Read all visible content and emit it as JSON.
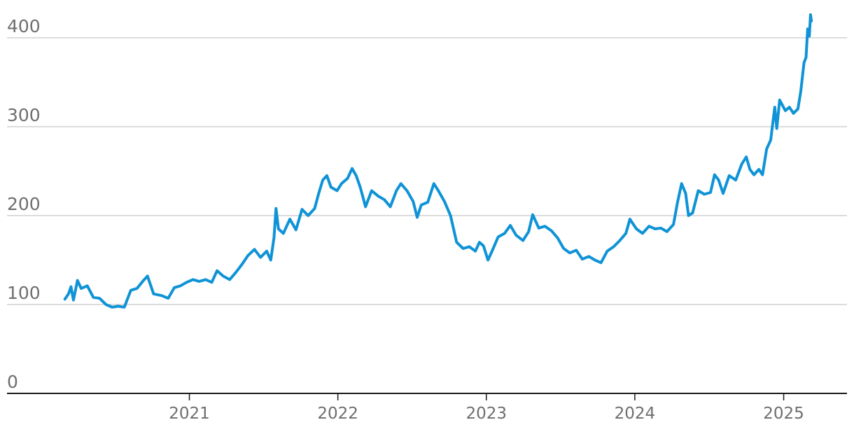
{
  "chart_data": {
    "type": "line",
    "title": "",
    "xlabel": "",
    "ylabel": "",
    "ylim": [
      0,
      420
    ],
    "xlim": [
      "2020-02-15",
      "2025-04-15"
    ],
    "grid": true,
    "y_ticks": [
      {
        "value": 0,
        "label": "0"
      },
      {
        "value": 100,
        "label": "100"
      },
      {
        "value": 200,
        "label": "200"
      },
      {
        "value": 300,
        "label": "300"
      },
      {
        "value": 400,
        "label": "400"
      }
    ],
    "x_ticks": [
      {
        "date": "2021-01-01",
        "label": "2021"
      },
      {
        "date": "2022-01-01",
        "label": "2022"
      },
      {
        "date": "2023-01-01",
        "label": "2023"
      },
      {
        "date": "2024-01-01",
        "label": "2024"
      },
      {
        "date": "2025-01-01",
        "label": "2025"
      }
    ],
    "series": [
      {
        "name": "",
        "color": "#0f93d6",
        "points": [
          [
            "2020-03-01",
            106
          ],
          [
            "2020-03-10",
            112
          ],
          [
            "2020-03-16",
            120
          ],
          [
            "2020-03-22",
            105
          ],
          [
            "2020-04-01",
            127
          ],
          [
            "2020-04-10",
            118
          ],
          [
            "2020-04-25",
            121
          ],
          [
            "2020-05-10",
            108
          ],
          [
            "2020-05-25",
            107
          ],
          [
            "2020-06-10",
            100
          ],
          [
            "2020-06-25",
            97
          ],
          [
            "2020-07-10",
            98
          ],
          [
            "2020-07-25",
            97
          ],
          [
            "2020-08-10",
            116
          ],
          [
            "2020-08-25",
            118
          ],
          [
            "2020-09-10",
            127
          ],
          [
            "2020-09-20",
            132
          ],
          [
            "2020-10-05",
            112
          ],
          [
            "2020-10-25",
            110
          ],
          [
            "2020-11-10",
            107
          ],
          [
            "2020-11-25",
            119
          ],
          [
            "2020-12-10",
            121
          ],
          [
            "2020-12-25",
            125
          ],
          [
            "2021-01-10",
            128
          ],
          [
            "2021-01-25",
            126
          ],
          [
            "2021-02-10",
            128
          ],
          [
            "2021-02-25",
            125
          ],
          [
            "2021-03-10",
            138
          ],
          [
            "2021-03-25",
            132
          ],
          [
            "2021-04-10",
            128
          ],
          [
            "2021-04-25",
            136
          ],
          [
            "2021-05-10",
            145
          ],
          [
            "2021-05-25",
            155
          ],
          [
            "2021-06-10",
            162
          ],
          [
            "2021-06-25",
            153
          ],
          [
            "2021-07-10",
            160
          ],
          [
            "2021-07-20",
            150
          ],
          [
            "2021-07-28",
            175
          ],
          [
            "2021-08-02",
            208
          ],
          [
            "2021-08-08",
            185
          ],
          [
            "2021-08-20",
            180
          ],
          [
            "2021-09-05",
            196
          ],
          [
            "2021-09-20",
            184
          ],
          [
            "2021-10-05",
            207
          ],
          [
            "2021-10-20",
            200
          ],
          [
            "2021-11-05",
            208
          ],
          [
            "2021-11-15",
            225
          ],
          [
            "2021-11-25",
            240
          ],
          [
            "2021-12-05",
            245
          ],
          [
            "2021-12-15",
            232
          ],
          [
            "2021-12-30",
            228
          ],
          [
            "2022-01-10",
            236
          ],
          [
            "2022-01-25",
            242
          ],
          [
            "2022-02-05",
            253
          ],
          [
            "2022-02-15",
            245
          ],
          [
            "2022-02-25",
            232
          ],
          [
            "2022-03-10",
            210
          ],
          [
            "2022-03-25",
            228
          ],
          [
            "2022-04-10",
            222
          ],
          [
            "2022-04-25",
            218
          ],
          [
            "2022-05-10",
            210
          ],
          [
            "2022-05-25",
            228
          ],
          [
            "2022-06-05",
            236
          ],
          [
            "2022-06-20",
            228
          ],
          [
            "2022-07-05",
            216
          ],
          [
            "2022-07-15",
            198
          ],
          [
            "2022-07-25",
            212
          ],
          [
            "2022-08-10",
            215
          ],
          [
            "2022-08-25",
            236
          ],
          [
            "2022-09-05",
            228
          ],
          [
            "2022-09-20",
            216
          ],
          [
            "2022-10-05",
            200
          ],
          [
            "2022-10-20",
            170
          ],
          [
            "2022-11-05",
            163
          ],
          [
            "2022-11-20",
            165
          ],
          [
            "2022-12-05",
            160
          ],
          [
            "2022-12-15",
            170
          ],
          [
            "2022-12-25",
            166
          ],
          [
            "2023-01-05",
            150
          ],
          [
            "2023-01-15",
            160
          ],
          [
            "2023-01-30",
            176
          ],
          [
            "2023-02-15",
            180
          ],
          [
            "2023-03-01",
            189
          ],
          [
            "2023-03-15",
            178
          ],
          [
            "2023-04-01",
            172
          ],
          [
            "2023-04-15",
            182
          ],
          [
            "2023-04-25",
            201
          ],
          [
            "2023-05-10",
            186
          ],
          [
            "2023-05-25",
            188
          ],
          [
            "2023-06-10",
            183
          ],
          [
            "2023-06-25",
            175
          ],
          [
            "2023-07-10",
            163
          ],
          [
            "2023-07-25",
            158
          ],
          [
            "2023-08-10",
            161
          ],
          [
            "2023-08-25",
            151
          ],
          [
            "2023-09-10",
            154
          ],
          [
            "2023-09-25",
            150
          ],
          [
            "2023-10-10",
            147
          ],
          [
            "2023-10-25",
            160
          ],
          [
            "2023-11-10",
            165
          ],
          [
            "2023-11-25",
            172
          ],
          [
            "2023-12-10",
            180
          ],
          [
            "2023-12-20",
            196
          ],
          [
            "2024-01-05",
            185
          ],
          [
            "2024-01-20",
            180
          ],
          [
            "2024-02-05",
            188
          ],
          [
            "2024-02-20",
            185
          ],
          [
            "2024-03-05",
            186
          ],
          [
            "2024-03-20",
            182
          ],
          [
            "2024-04-05",
            190
          ],
          [
            "2024-04-15",
            215
          ],
          [
            "2024-04-25",
            236
          ],
          [
            "2024-05-05",
            225
          ],
          [
            "2024-05-12",
            200
          ],
          [
            "2024-05-22",
            203
          ],
          [
            "2024-06-05",
            228
          ],
          [
            "2024-06-20",
            224
          ],
          [
            "2024-07-05",
            226
          ],
          [
            "2024-07-15",
            246
          ],
          [
            "2024-07-25",
            240
          ],
          [
            "2024-08-05",
            225
          ],
          [
            "2024-08-20",
            245
          ],
          [
            "2024-09-05",
            240
          ],
          [
            "2024-09-20",
            258
          ],
          [
            "2024-10-01",
            266
          ],
          [
            "2024-10-10",
            252
          ],
          [
            "2024-10-20",
            246
          ],
          [
            "2024-11-01",
            252
          ],
          [
            "2024-11-10",
            246
          ],
          [
            "2024-11-20",
            275
          ],
          [
            "2024-11-30",
            285
          ],
          [
            "2024-12-10",
            322
          ],
          [
            "2024-12-15",
            298
          ],
          [
            "2024-12-22",
            330
          ],
          [
            "2025-01-05",
            318
          ],
          [
            "2025-01-15",
            322
          ],
          [
            "2025-01-25",
            315
          ],
          [
            "2025-02-05",
            320
          ],
          [
            "2025-02-12",
            340
          ],
          [
            "2025-02-20",
            372
          ],
          [
            "2025-02-25",
            378
          ],
          [
            "2025-03-01",
            410
          ],
          [
            "2025-03-05",
            402
          ],
          [
            "2025-03-08",
            426
          ],
          [
            "2025-03-10",
            419
          ]
        ]
      }
    ]
  }
}
